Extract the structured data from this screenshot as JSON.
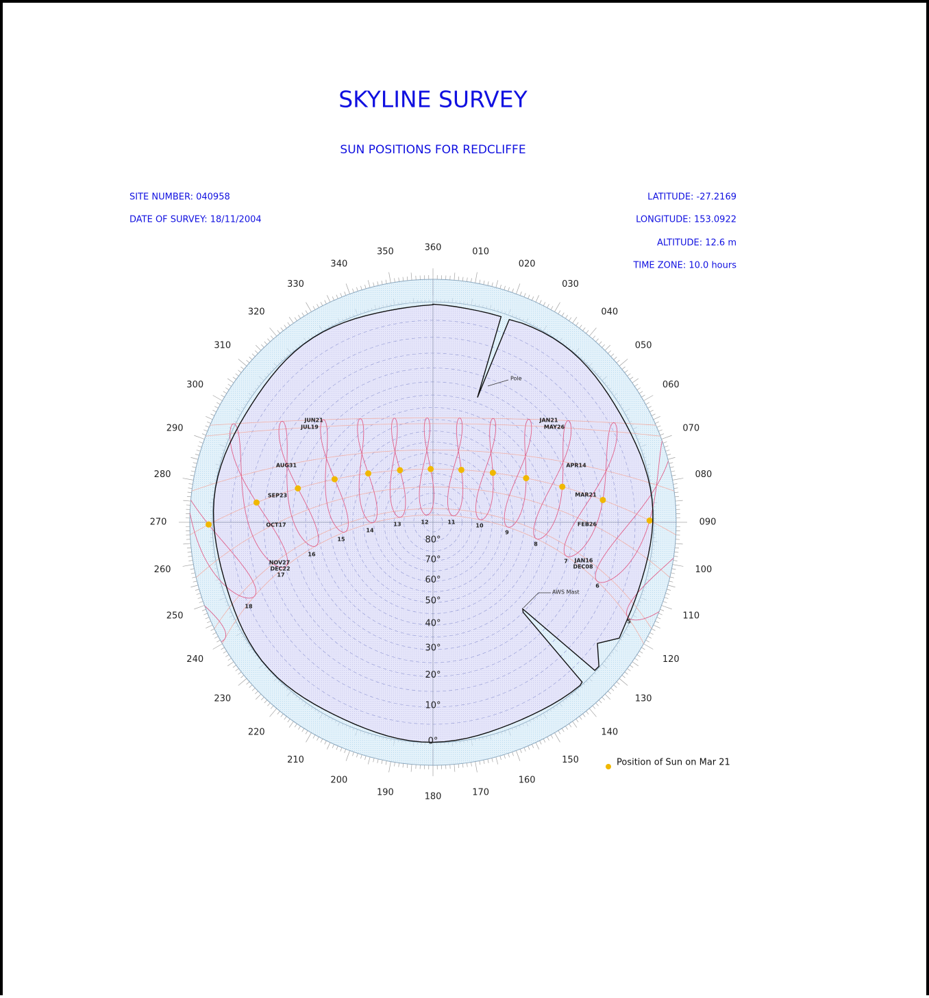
{
  "header": {
    "title": "SKYLINE SURVEY",
    "subtitle": "SUN POSITIONS FOR REDCLIFFE"
  },
  "site": {
    "site_number": "SITE NUMBER: 040958",
    "date_of_survey": "DATE OF SURVEY: 18/11/2004",
    "latitude": "LATITUDE: -27.2169",
    "longitude": "LONGITUDE: 153.0922",
    "altitude": "ALTITUDE: 12.6 m",
    "time_zone": "TIME ZONE: 10.0 hours"
  },
  "azimuth_labels": [
    "360",
    "010",
    "020",
    "030",
    "040",
    "050",
    "060",
    "070",
    "080",
    "090",
    "100",
    "110",
    "120",
    "130",
    "140",
    "150",
    "160",
    "170",
    "180",
    "190",
    "200",
    "210",
    "220",
    "230",
    "240",
    "250",
    "260",
    "270",
    "280",
    "290",
    "300",
    "310",
    "320",
    "330",
    "340",
    "350"
  ],
  "altitude_labels": [
    "0°",
    "10°",
    "20°",
    "30°",
    "40°",
    "50°",
    "60°",
    "70°",
    "80°"
  ],
  "hour_labels": [
    "5",
    "6",
    "7",
    "8",
    "9",
    "10",
    "11",
    "12",
    "13",
    "14",
    "15",
    "16",
    "17",
    "18"
  ],
  "date_labels": [
    "JUN21",
    "JUL19",
    "AUG31",
    "SEP23",
    "OCT17",
    "NOV27",
    "DEC22",
    "JAN21",
    "MAY26",
    "APR14",
    "MAR21",
    "FEB26",
    "JAN16",
    "DEC08"
  ],
  "annotations": [
    "Pole",
    "AWS Mast"
  ],
  "legend": "Position of Sun on Mar 21"
}
